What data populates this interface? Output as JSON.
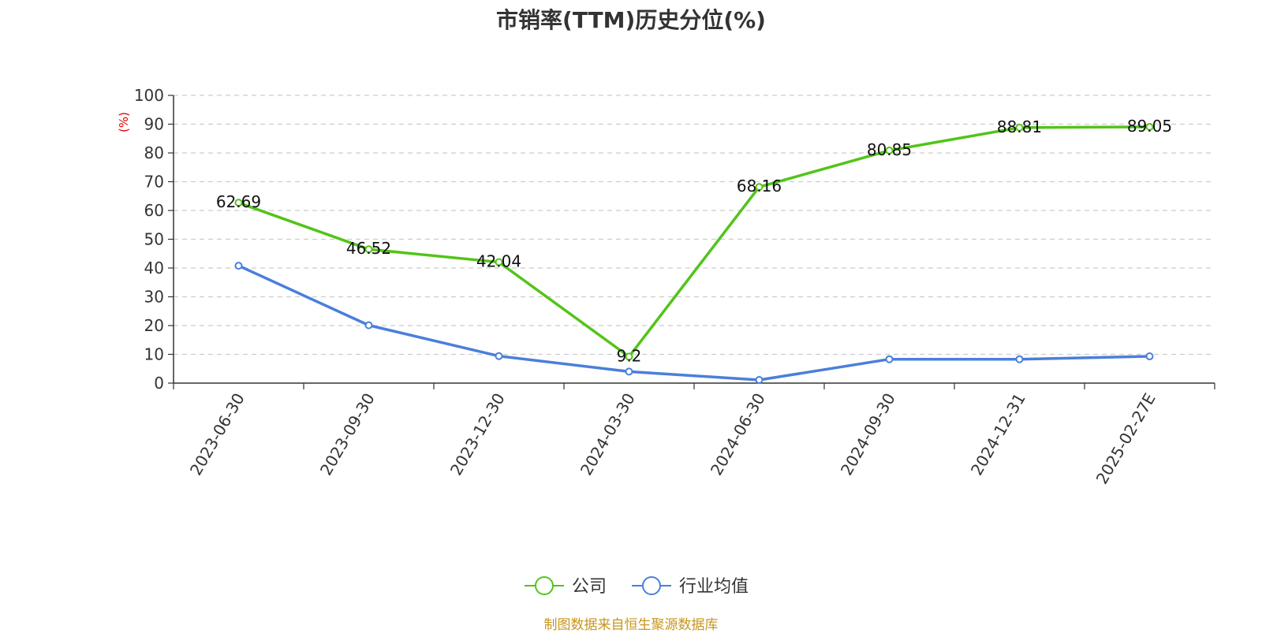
{
  "chart_data": {
    "type": "line",
    "title": "市销率(TTM)历史分位(%)",
    "ylabel": "(%)",
    "xlabel": "",
    "ylim": [
      0,
      100
    ],
    "yticks": [
      0,
      10,
      20,
      30,
      40,
      50,
      60,
      70,
      80,
      90,
      100
    ],
    "grid": true,
    "legend_position": "bottom-center",
    "categories": [
      "2023-06-30",
      "2023-09-30",
      "2023-12-30",
      "2024-03-30",
      "2024-06-30",
      "2024-09-30",
      "2024-12-31",
      "2025-02-27E"
    ],
    "series": [
      {
        "name": "公司",
        "color": "#52c41a",
        "values": [
          62.69,
          46.52,
          42.04,
          9.2,
          68.16,
          80.85,
          88.81,
          89.05
        ],
        "labels": [
          "62.69",
          "46.52",
          "42.04",
          "9.2",
          "68.16",
          "80.85",
          "88.81",
          "89.05"
        ],
        "show_labels": true
      },
      {
        "name": "行业均值",
        "color": "#4a7fdb",
        "values": [
          40.8,
          20.1,
          9.4,
          4.0,
          1.1,
          8.3,
          8.3,
          9.3
        ],
        "show_labels": false
      }
    ],
    "ylabel_color": "#e00000",
    "source": "制图数据来自恒生聚源数据库",
    "source_color": "#c8961e"
  }
}
